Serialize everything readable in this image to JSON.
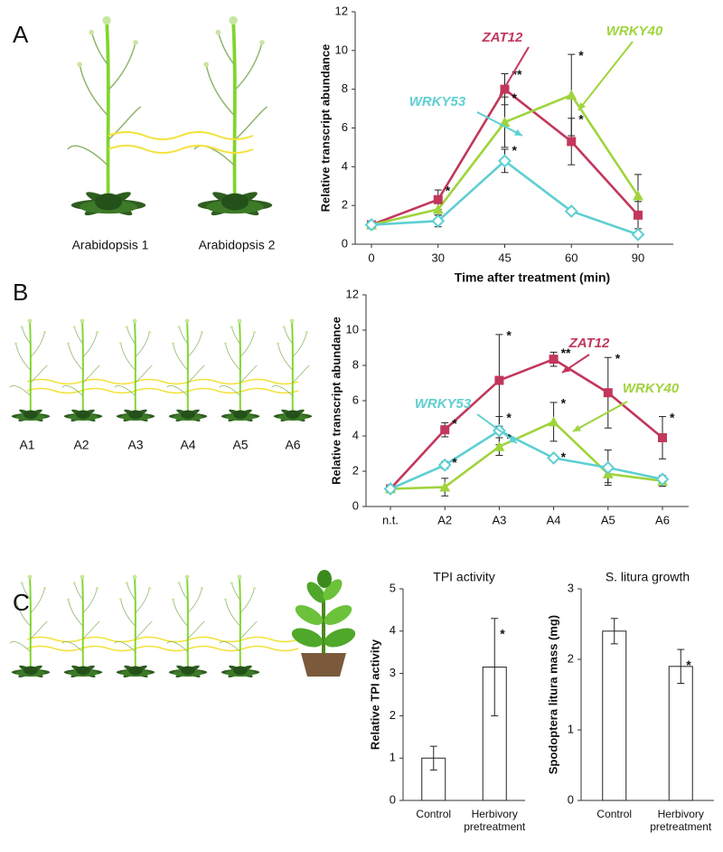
{
  "panels": [
    "A",
    "B",
    "C"
  ],
  "illustrations": {
    "A": [
      "Arabidopsis 1",
      "Arabidopsis 2"
    ],
    "B": [
      "A1",
      "A2",
      "A3",
      "A4",
      "A5",
      "A6"
    ]
  },
  "chart_data": [
    {
      "type": "line",
      "xlabel": "Time after treatment (min)",
      "ylabel": "Relative transcript abundance",
      "categories": [
        "0",
        "30",
        "45",
        "60",
        "90"
      ],
      "ylim": [
        0,
        12
      ],
      "yticks": [
        0,
        2,
        4,
        6,
        8,
        10,
        12
      ],
      "series": [
        {
          "name": "ZAT12",
          "color": "#c2375b",
          "marker": "square",
          "values": [
            1,
            2.3,
            8.0,
            5.3,
            1.5
          ],
          "errors": [
            0.1,
            0.5,
            0.8,
            1.2,
            0.7
          ],
          "significance": [
            null,
            "*",
            "**",
            "*",
            null
          ]
        },
        {
          "name": "WRKY40",
          "color": "#9fd43c",
          "marker": "triangle",
          "values": [
            1,
            1.8,
            6.3,
            7.7,
            2.5
          ],
          "errors": [
            0.1,
            0.3,
            1.3,
            2.1,
            1.1
          ],
          "significance": [
            null,
            null,
            "*",
            "*",
            null
          ]
        },
        {
          "name": "WRKY53",
          "color": "#5fcfd2",
          "marker": "diamond",
          "values": [
            1,
            1.2,
            4.3,
            1.7,
            0.5
          ],
          "errors": [
            0.1,
            0.3,
            0.6,
            0.1,
            0.1
          ],
          "significance": [
            null,
            null,
            "*",
            null,
            null
          ]
        }
      ]
    },
    {
      "type": "line",
      "ylabel": "Relative transcript abundance",
      "categories": [
        "n.t.",
        "A2",
        "A3",
        "A4",
        "A5",
        "A6"
      ],
      "ylim": [
        0,
        12
      ],
      "yticks": [
        0,
        2,
        4,
        6,
        8,
        10,
        12
      ],
      "series": [
        {
          "name": "ZAT12",
          "color": "#c2375b",
          "marker": "square",
          "values": [
            1,
            4.35,
            7.15,
            8.35,
            6.45,
            3.9
          ],
          "errors": [
            0.1,
            0.4,
            2.6,
            0.4,
            2.0,
            1.2
          ],
          "significance": [
            null,
            "*",
            "*",
            "**",
            "*",
            "*"
          ]
        },
        {
          "name": "WRKY40",
          "color": "#9fd43c",
          "marker": "triangle",
          "values": [
            1,
            1.1,
            3.4,
            4.8,
            1.85,
            1.45
          ],
          "errors": [
            0.1,
            0.5,
            0.5,
            1.1,
            0.5,
            0.3
          ],
          "significance": [
            null,
            null,
            "*",
            "*",
            null,
            null
          ]
        },
        {
          "name": "WRKY53",
          "color": "#5fcfd2",
          "marker": "diamond",
          "values": [
            1,
            2.35,
            4.3,
            2.75,
            2.2,
            1.55
          ],
          "errors": [
            0.1,
            0.2,
            0.8,
            0.1,
            1.0,
            0.2
          ],
          "significance": [
            null,
            "*",
            "*",
            "*",
            null,
            null
          ]
        }
      ]
    },
    {
      "type": "bar",
      "title": "TPI activity",
      "ylabel": "Relative TPI activity",
      "categories": [
        "Control",
        "Herbivory pretreatment"
      ],
      "values": [
        1,
        3.15
      ],
      "errors": [
        0.28,
        1.15
      ],
      "significance": [
        null,
        "*"
      ],
      "color": "#ffffff",
      "ylim": [
        0,
        5
      ],
      "yticks": [
        0,
        1,
        2,
        3,
        4,
        5
      ]
    },
    {
      "type": "bar",
      "title": "S. litura growth",
      "ylabel": "Spodoptera litura mass (mg)",
      "categories": [
        "Control",
        "Herbivory pretreatment"
      ],
      "values": [
        2.4,
        1.9
      ],
      "errors": [
        0.18,
        0.24
      ],
      "significance": [
        null,
        "*"
      ],
      "color": "#ffffff",
      "ylim": [
        0,
        3
      ],
      "yticks": [
        0,
        1,
        2,
        3
      ]
    }
  ]
}
